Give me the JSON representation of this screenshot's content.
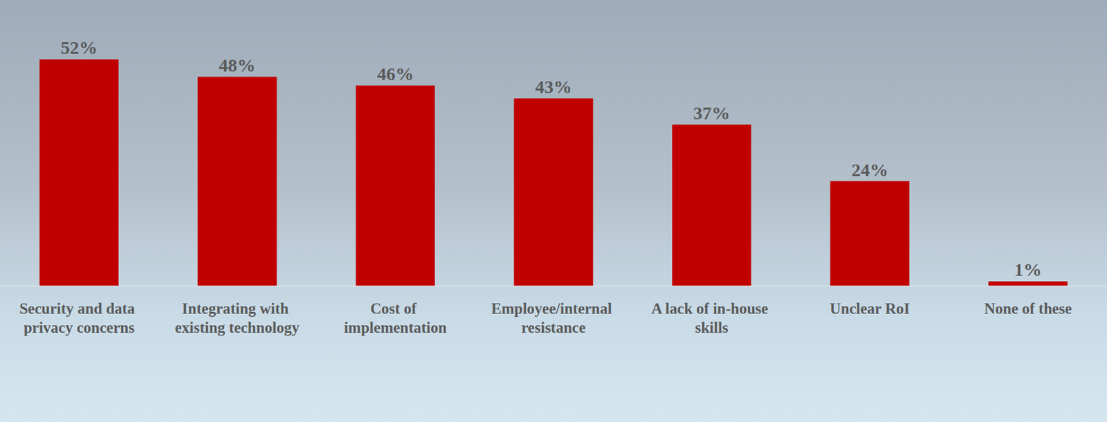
{
  "chart_data": {
    "type": "bar",
    "categories": [
      "Security and data privacy concerns",
      "Integrating with existing technology",
      "Cost of implementation",
      "Employee/internal resistance",
      "A lack of in-house skills",
      "Unclear RoI",
      "None of these"
    ],
    "values": [
      52,
      48,
      46,
      43,
      37,
      24,
      1
    ],
    "value_labels": [
      "52%",
      "48%",
      "46%",
      "43%",
      "37%",
      "24%",
      "1%"
    ],
    "color": "#c00000",
    "data_labels": true,
    "tick_labels": "x",
    "grid": false
  }
}
